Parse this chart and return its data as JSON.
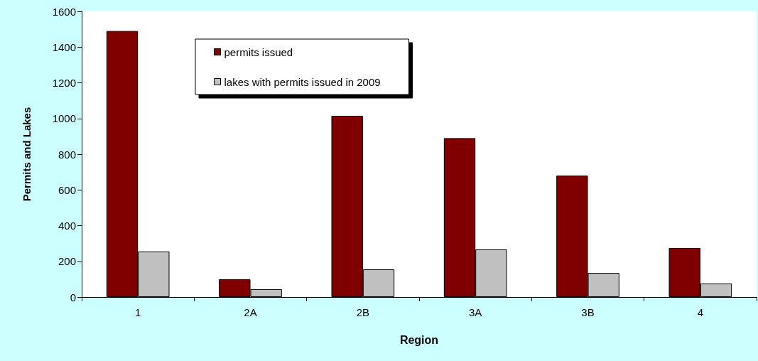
{
  "chart_data": {
    "type": "bar",
    "xlabel": "Region",
    "ylabel": "Permits and Lakes",
    "categories": [
      "1",
      "2A",
      "2B",
      "3A",
      "3B",
      "4"
    ],
    "series": [
      {
        "name": "permits issued",
        "color": "#800000",
        "values": [
          1490,
          100,
          1015,
          890,
          680,
          275
        ]
      },
      {
        "name": "lakes with permits issued in 2009",
        "color": "#c0c0c0",
        "values": [
          255,
          44,
          155,
          267,
          135,
          76
        ]
      }
    ],
    "ylim": [
      0,
      1600
    ],
    "yticks": [
      0,
      200,
      400,
      600,
      800,
      1000,
      1200,
      1400,
      1600
    ],
    "grid": false,
    "legend": "top left"
  }
}
